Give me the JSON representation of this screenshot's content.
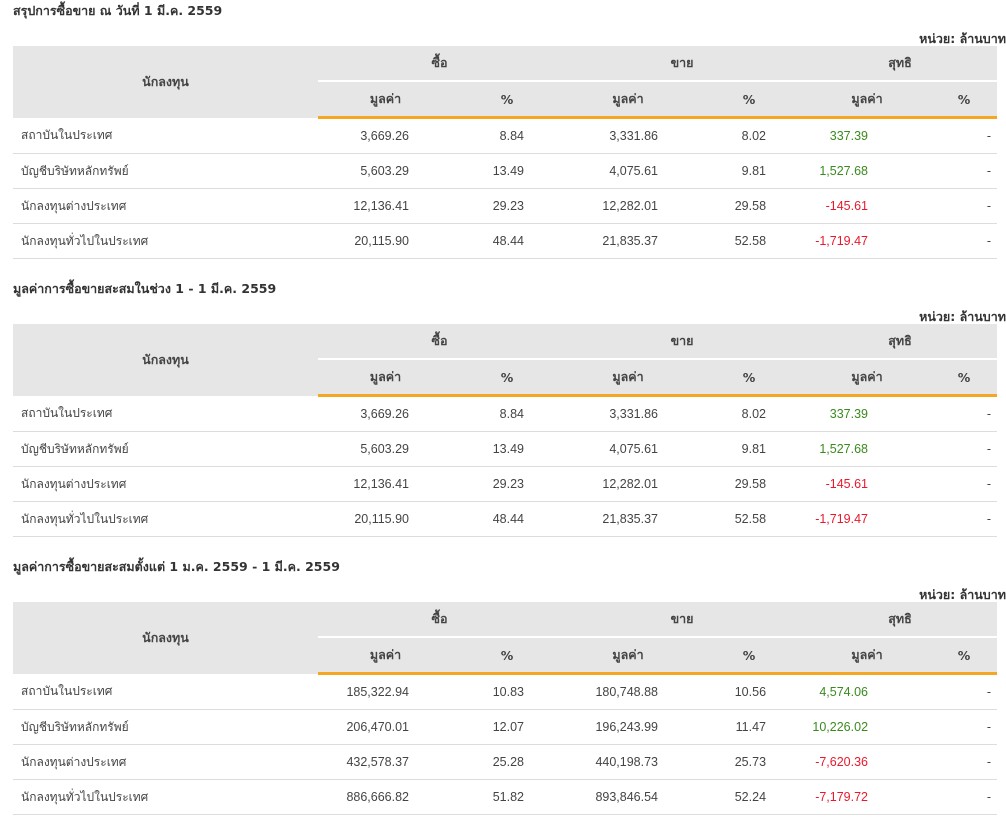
{
  "unit_label": "หน่วย: ล้านบาท",
  "headers": {
    "investor": "นักลงทุน",
    "buy": "ซื้อ",
    "sell": "ขาย",
    "net": "สุทธิ",
    "value": "มูลค่า",
    "percent": "%"
  },
  "sections": [
    {
      "title": "สรุปการซื้อขาย ณ วันที่ 1 มี.ค. 2559",
      "rows": [
        {
          "name": "สถาบันในประเทศ",
          "buy_value": "3,669.26",
          "buy_pct": "8.84",
          "sell_value": "3,331.86",
          "sell_pct": "8.02",
          "net_value": "337.39",
          "net_pct": "-"
        },
        {
          "name": "บัญชีบริษัทหลักทรัพย์",
          "buy_value": "5,603.29",
          "buy_pct": "13.49",
          "sell_value": "4,075.61",
          "sell_pct": "9.81",
          "net_value": "1,527.68",
          "net_pct": "-"
        },
        {
          "name": "นักลงทุนต่างประเทศ",
          "buy_value": "12,136.41",
          "buy_pct": "29.23",
          "sell_value": "12,282.01",
          "sell_pct": "29.58",
          "net_value": "-145.61",
          "net_pct": "-"
        },
        {
          "name": "นักลงทุนทั่วไปในประเทศ",
          "buy_value": "20,115.90",
          "buy_pct": "48.44",
          "sell_value": "21,835.37",
          "sell_pct": "52.58",
          "net_value": "-1,719.47",
          "net_pct": "-"
        }
      ]
    },
    {
      "title": "มูลค่าการซื้อขายสะสมในช่วง 1 - 1 มี.ค. 2559",
      "rows": [
        {
          "name": "สถาบันในประเทศ",
          "buy_value": "3,669.26",
          "buy_pct": "8.84",
          "sell_value": "3,331.86",
          "sell_pct": "8.02",
          "net_value": "337.39",
          "net_pct": "-"
        },
        {
          "name": "บัญชีบริษัทหลักทรัพย์",
          "buy_value": "5,603.29",
          "buy_pct": "13.49",
          "sell_value": "4,075.61",
          "sell_pct": "9.81",
          "net_value": "1,527.68",
          "net_pct": "-"
        },
        {
          "name": "นักลงทุนต่างประเทศ",
          "buy_value": "12,136.41",
          "buy_pct": "29.23",
          "sell_value": "12,282.01",
          "sell_pct": "29.58",
          "net_value": "-145.61",
          "net_pct": "-"
        },
        {
          "name": "นักลงทุนทั่วไปในประเทศ",
          "buy_value": "20,115.90",
          "buy_pct": "48.44",
          "sell_value": "21,835.37",
          "sell_pct": "52.58",
          "net_value": "-1,719.47",
          "net_pct": "-"
        }
      ]
    },
    {
      "title": "มูลค่าการซื้อขายสะสมตั้งแต่ 1 ม.ค. 2559 - 1 มี.ค. 2559",
      "rows": [
        {
          "name": "สถาบันในประเทศ",
          "buy_value": "185,322.94",
          "buy_pct": "10.83",
          "sell_value": "180,748.88",
          "sell_pct": "10.56",
          "net_value": "4,574.06",
          "net_pct": "-"
        },
        {
          "name": "บัญชีบริษัทหลักทรัพย์",
          "buy_value": "206,470.01",
          "buy_pct": "12.07",
          "sell_value": "196,243.99",
          "sell_pct": "11.47",
          "net_value": "10,226.02",
          "net_pct": "-"
        },
        {
          "name": "นักลงทุนต่างประเทศ",
          "buy_value": "432,578.37",
          "buy_pct": "25.28",
          "sell_value": "440,198.73",
          "sell_pct": "25.73",
          "net_value": "-7,620.36",
          "net_pct": "-"
        },
        {
          "name": "นักลงทุนทั่วไปในประเทศ",
          "buy_value": "886,666.82",
          "buy_pct": "51.82",
          "sell_value": "893,846.54",
          "sell_pct": "52.24",
          "net_value": "-7,179.72",
          "net_pct": "-"
        }
      ]
    }
  ],
  "colors": {
    "positive": "#3a8a1e",
    "negative": "#e8192c",
    "header_bg": "#e6e6e6",
    "accent": "#f5a623"
  }
}
